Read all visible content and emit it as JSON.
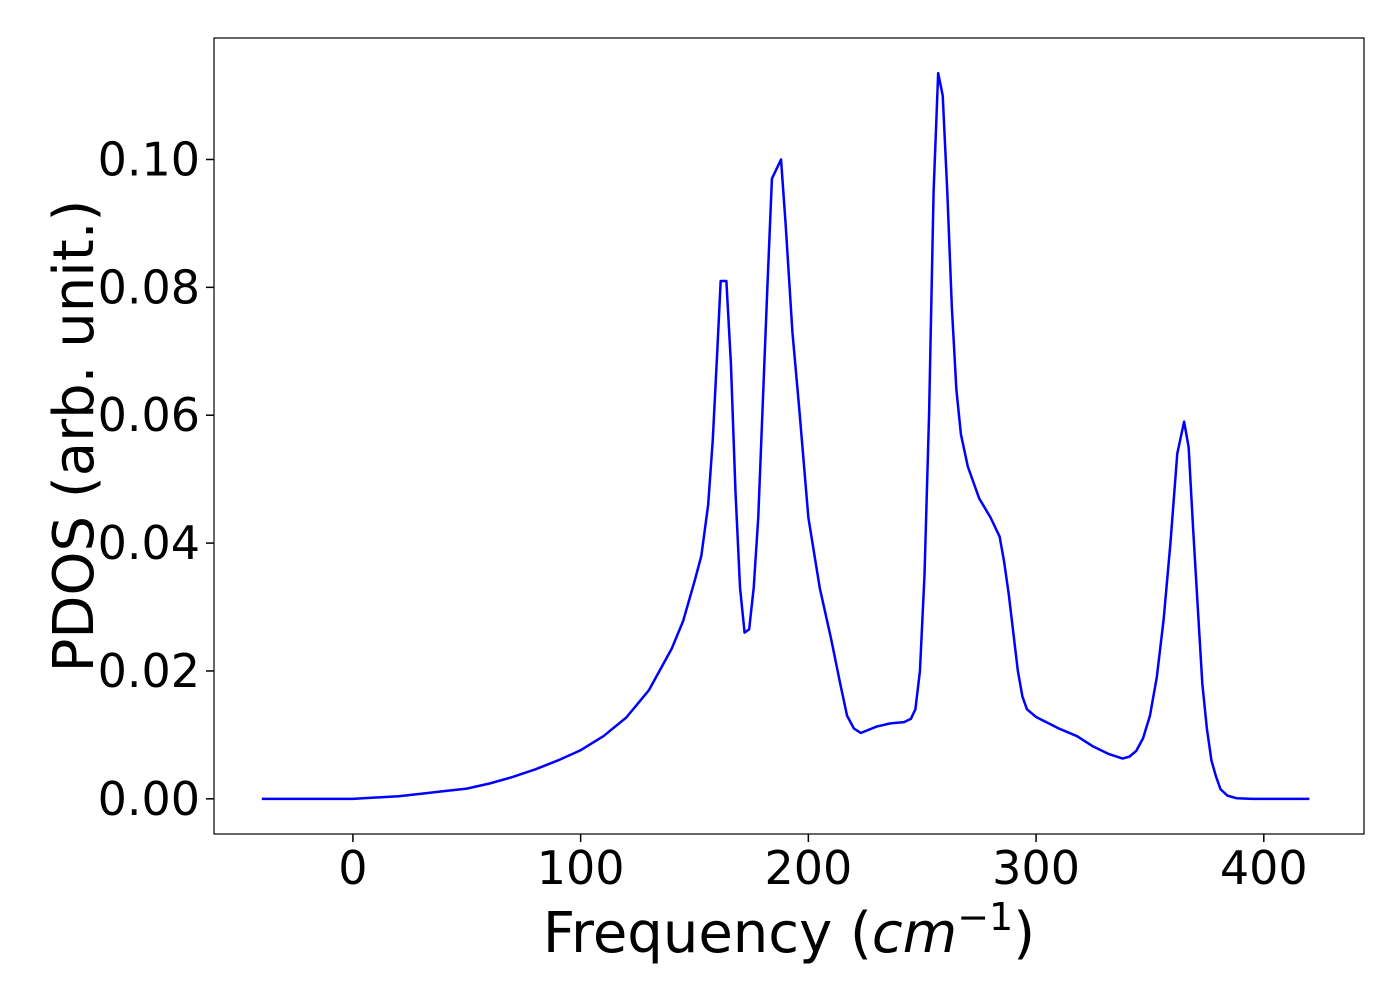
{
  "chart_data": {
    "type": "line",
    "x_label": [
      "Frequency (",
      "cm",
      "−1",
      ")"
    ],
    "y_label": "PDOS (arb. unit.)",
    "xlim": [
      -61,
      444
    ],
    "ylim": [
      -0.0055,
      0.119
    ],
    "xticks": [
      0,
      100,
      200,
      300,
      400
    ],
    "yticks": [
      {
        "value": 0,
        "label": "0.00"
      },
      {
        "value": 0.02,
        "label": "0.02"
      },
      {
        "value": 0.04,
        "label": "0.04"
      },
      {
        "value": 0.06,
        "label": "0.06"
      },
      {
        "value": 0.08,
        "label": "0.08"
      },
      {
        "value": 0.1,
        "label": "0.10"
      }
    ],
    "grid": false,
    "series": [
      {
        "color": "#0000ff",
        "x": [
          -40,
          0,
          10,
          20,
          30,
          40,
          50,
          60,
          70,
          80,
          90,
          100,
          110,
          120,
          130,
          140,
          145,
          150,
          153,
          156,
          158,
          160,
          161.5,
          164,
          166,
          168,
          170,
          172,
          174,
          176,
          178,
          180,
          182,
          184,
          188,
          190,
          193,
          196,
          200,
          205,
          210,
          214,
          217,
          220,
          223,
          230,
          236,
          242,
          245,
          247,
          249,
          251,
          253,
          255,
          257,
          259,
          261,
          263,
          265,
          267,
          270,
          275,
          280,
          284,
          286,
          288,
          290,
          292,
          294,
          296,
          300,
          310,
          318,
          325,
          332,
          338,
          341,
          344,
          347,
          350,
          353,
          356,
          359,
          362,
          365,
          367,
          369,
          371,
          373,
          375,
          377,
          379,
          381,
          384,
          388,
          395,
          420
        ],
        "values": [
          0,
          0,
          0.0002,
          0.0004,
          0.0008,
          0.0012,
          0.0016,
          0.0024,
          0.0034,
          0.0046,
          0.006,
          0.0076,
          0.0098,
          0.0127,
          0.017,
          0.0235,
          0.0278,
          0.034,
          0.038,
          0.046,
          0.056,
          0.07,
          0.081,
          0.081,
          0.068,
          0.048,
          0.033,
          0.026,
          0.0265,
          0.033,
          0.044,
          0.062,
          0.08,
          0.097,
          0.1,
          0.09,
          0.073,
          0.061,
          0.044,
          0.033,
          0.025,
          0.018,
          0.013,
          0.011,
          0.0103,
          0.0113,
          0.0118,
          0.012,
          0.0125,
          0.014,
          0.02,
          0.035,
          0.06,
          0.095,
          0.1135,
          0.11,
          0.095,
          0.077,
          0.064,
          0.057,
          0.052,
          0.047,
          0.044,
          0.041,
          0.037,
          0.032,
          0.026,
          0.02,
          0.016,
          0.014,
          0.0128,
          0.011,
          0.0098,
          0.0082,
          0.007,
          0.0063,
          0.0066,
          0.0075,
          0.0095,
          0.013,
          0.019,
          0.028,
          0.04,
          0.054,
          0.059,
          0.055,
          0.042,
          0.03,
          0.018,
          0.011,
          0.006,
          0.0035,
          0.0015,
          0.0005,
          0.0001,
          0,
          0
        ]
      }
    ]
  }
}
